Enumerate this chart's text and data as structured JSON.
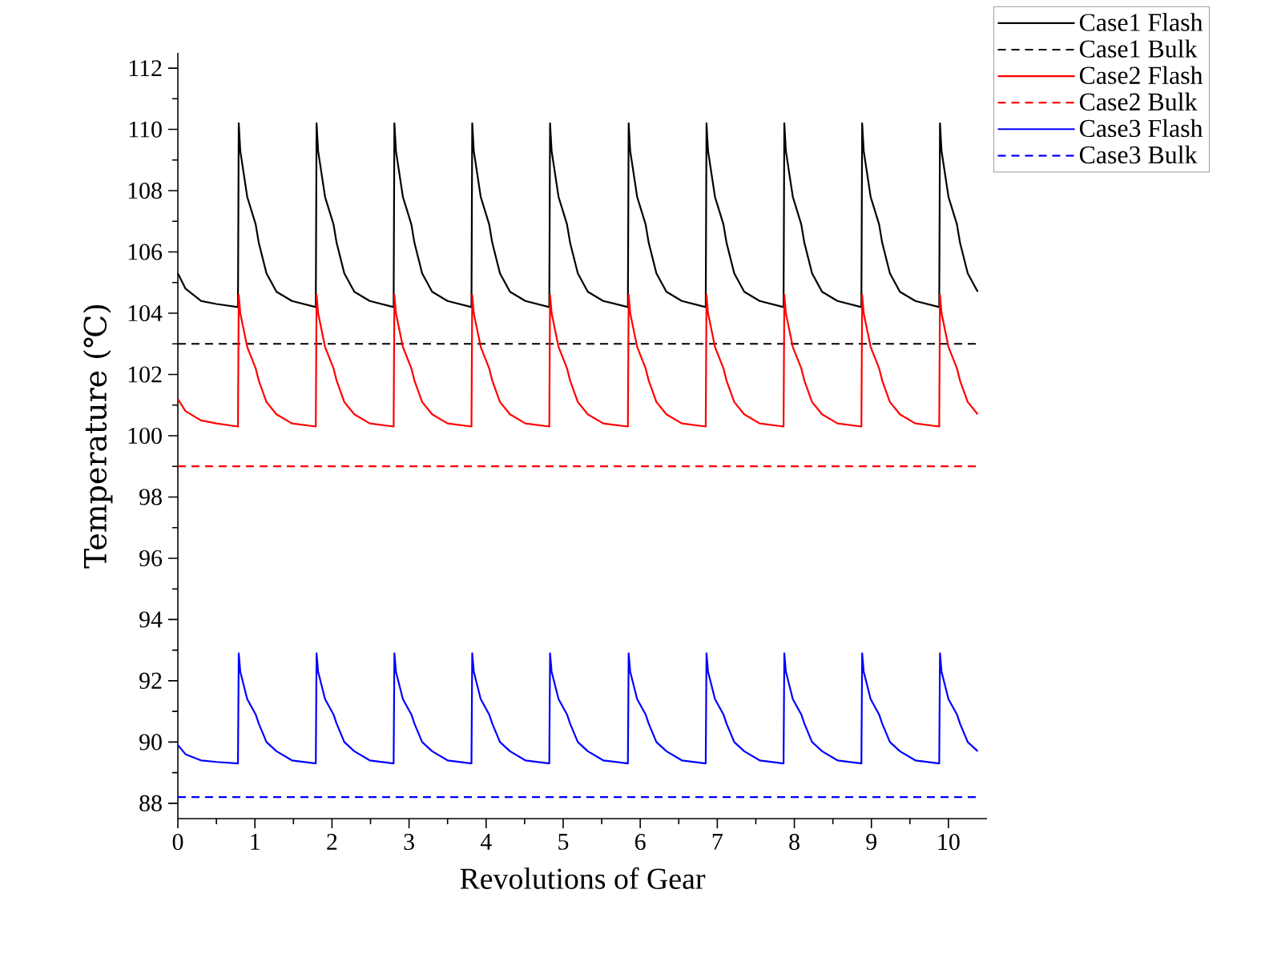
{
  "chart_data": {
    "type": "line",
    "xlabel": "Revolutions of Gear",
    "ylabel": "Temperature (℃)",
    "xlim": [
      0,
      10.5
    ],
    "ylim": [
      87.5,
      112.5
    ],
    "xticks": [
      0,
      1,
      2,
      3,
      4,
      5,
      6,
      7,
      8,
      9,
      10
    ],
    "yticks": [
      88,
      90,
      92,
      94,
      96,
      98,
      100,
      102,
      104,
      106,
      108,
      110,
      112
    ],
    "legend": "top right",
    "x": [
      0,
      0.1,
      0.3,
      0.5,
      0.78,
      0.79,
      0.81,
      0.9,
      1.01,
      1.05,
      1.15,
      1.28,
      1.48,
      1.79,
      1.8,
      1.82,
      1.91,
      2.02,
      2.06,
      2.16,
      2.29,
      2.49,
      2.8,
      2.81,
      2.83,
      2.92,
      3.03,
      3.07,
      3.17,
      3.3,
      3.5,
      3.81,
      3.82,
      3.84,
      3.93,
      4.04,
      4.08,
      4.18,
      4.31,
      4.51,
      4.82,
      4.83,
      4.85,
      4.94,
      5.05,
      5.09,
      5.19,
      5.32,
      5.52,
      5.84,
      5.85,
      5.87,
      5.96,
      6.07,
      6.11,
      6.21,
      6.34,
      6.54,
      6.85,
      6.86,
      6.88,
      6.97,
      7.08,
      7.12,
      7.22,
      7.35,
      7.55,
      7.86,
      7.87,
      7.89,
      7.98,
      8.09,
      8.13,
      8.23,
      8.36,
      8.56,
      8.87,
      8.88,
      8.9,
      8.99,
      9.1,
      9.14,
      9.24,
      9.37,
      9.57,
      9.88,
      9.89,
      9.91,
      10,
      10.11,
      10.15,
      10.25,
      10.38
    ],
    "series": [
      {
        "name": "Case1 Flash",
        "color": "#000000",
        "line_style": "solid",
        "values": [
          105.3,
          104.8,
          104.4,
          104.3,
          104.2,
          110.2,
          109.3,
          107.8,
          106.9,
          106.3,
          105.3,
          104.7,
          104.4,
          104.2,
          110.2,
          109.3,
          107.8,
          106.9,
          106.3,
          105.3,
          104.7,
          104.4,
          104.2,
          110.2,
          109.3,
          107.8,
          106.9,
          106.3,
          105.3,
          104.7,
          104.4,
          104.2,
          110.2,
          109.3,
          107.8,
          106.9,
          106.3,
          105.3,
          104.7,
          104.4,
          104.2,
          110.2,
          109.3,
          107.8,
          106.9,
          106.3,
          105.3,
          104.7,
          104.4,
          104.2,
          110.2,
          109.3,
          107.8,
          106.9,
          106.3,
          105.3,
          104.7,
          104.4,
          104.2,
          110.2,
          109.3,
          107.8,
          106.9,
          106.3,
          105.3,
          104.7,
          104.4,
          104.2,
          110.2,
          109.3,
          107.8,
          106.9,
          106.3,
          105.3,
          104.7,
          104.4,
          104.2,
          110.2,
          109.3,
          107.8,
          106.9,
          106.3,
          105.3,
          104.7,
          104.4,
          104.2,
          110.2,
          109.3,
          107.8,
          106.9,
          106.3,
          105.3,
          104.7
        ]
      },
      {
        "name": "Case1 Bulk",
        "color": "#000000",
        "line_style": "dashed",
        "values": [
          103,
          103,
          103,
          103,
          103,
          103,
          103,
          103,
          103,
          103,
          103,
          103,
          103,
          103,
          103,
          103,
          103,
          103,
          103,
          103,
          103,
          103,
          103,
          103,
          103,
          103,
          103,
          103,
          103,
          103,
          103,
          103,
          103,
          103,
          103,
          103,
          103,
          103,
          103,
          103,
          103,
          103,
          103,
          103,
          103,
          103,
          103,
          103,
          103,
          103,
          103,
          103,
          103,
          103,
          103,
          103,
          103,
          103,
          103,
          103,
          103,
          103,
          103,
          103,
          103,
          103,
          103,
          103,
          103,
          103,
          103,
          103,
          103,
          103,
          103,
          103,
          103,
          103,
          103,
          103,
          103,
          103,
          103,
          103,
          103,
          103,
          103,
          103,
          103,
          103,
          103,
          103,
          103
        ]
      },
      {
        "name": "Case2 Flash",
        "color": "#ff0000",
        "line_style": "solid",
        "values": [
          101.2,
          100.8,
          100.5,
          100.4,
          100.3,
          104.6,
          104.0,
          102.9,
          102.2,
          101.8,
          101.1,
          100.7,
          100.4,
          100.3,
          104.6,
          104.0,
          102.9,
          102.2,
          101.8,
          101.1,
          100.7,
          100.4,
          100.3,
          104.6,
          104.0,
          102.9,
          102.2,
          101.8,
          101.1,
          100.7,
          100.4,
          100.3,
          104.6,
          104.0,
          102.9,
          102.2,
          101.8,
          101.1,
          100.7,
          100.4,
          100.3,
          104.6,
          104.0,
          102.9,
          102.2,
          101.8,
          101.1,
          100.7,
          100.4,
          100.3,
          104.6,
          104.0,
          102.9,
          102.2,
          101.8,
          101.1,
          100.7,
          100.4,
          100.3,
          104.6,
          104.0,
          102.9,
          102.2,
          101.8,
          101.1,
          100.7,
          100.4,
          100.3,
          104.6,
          104.0,
          102.9,
          102.2,
          101.8,
          101.1,
          100.7,
          100.4,
          100.3,
          104.6,
          104.0,
          102.9,
          102.2,
          101.8,
          101.1,
          100.7,
          100.4,
          100.3,
          104.6,
          104.0,
          102.9,
          102.2,
          101.8,
          101.1,
          100.7
        ]
      },
      {
        "name": "Case2 Bulk",
        "color": "#ff0000",
        "line_style": "dashed",
        "values": [
          99,
          99,
          99,
          99,
          99,
          99,
          99,
          99,
          99,
          99,
          99,
          99,
          99,
          99,
          99,
          99,
          99,
          99,
          99,
          99,
          99,
          99,
          99,
          99,
          99,
          99,
          99,
          99,
          99,
          99,
          99,
          99,
          99,
          99,
          99,
          99,
          99,
          99,
          99,
          99,
          99,
          99,
          99,
          99,
          99,
          99,
          99,
          99,
          99,
          99,
          99,
          99,
          99,
          99,
          99,
          99,
          99,
          99,
          99,
          99,
          99,
          99,
          99,
          99,
          99,
          99,
          99,
          99,
          99,
          99,
          99,
          99,
          99,
          99,
          99,
          99,
          99,
          99,
          99,
          99,
          99,
          99,
          99,
          99,
          99,
          99,
          99,
          99,
          99,
          99,
          99,
          99,
          99
        ]
      },
      {
        "name": "Case3 Flash",
        "color": "#0000ff",
        "line_style": "solid",
        "values": [
          89.9,
          89.6,
          89.4,
          89.35,
          89.3,
          92.9,
          92.3,
          91.4,
          90.9,
          90.6,
          90.0,
          89.7,
          89.4,
          89.3,
          92.9,
          92.3,
          91.4,
          90.9,
          90.6,
          90.0,
          89.7,
          89.4,
          89.3,
          92.9,
          92.3,
          91.4,
          90.9,
          90.6,
          90.0,
          89.7,
          89.4,
          89.3,
          92.9,
          92.3,
          91.4,
          90.9,
          90.6,
          90.0,
          89.7,
          89.4,
          89.3,
          92.9,
          92.3,
          91.4,
          90.9,
          90.6,
          90.0,
          89.7,
          89.4,
          89.3,
          92.9,
          92.3,
          91.4,
          90.9,
          90.6,
          90.0,
          89.7,
          89.4,
          89.3,
          92.9,
          92.3,
          91.4,
          90.9,
          90.6,
          90.0,
          89.7,
          89.4,
          89.3,
          92.9,
          92.3,
          91.4,
          90.9,
          90.6,
          90.0,
          89.7,
          89.4,
          89.3,
          92.9,
          92.3,
          91.4,
          90.9,
          90.6,
          90.0,
          89.7,
          89.4,
          89.3,
          92.9,
          92.3,
          91.4,
          90.9,
          90.6,
          90.0,
          89.7
        ]
      },
      {
        "name": "Case3 Bulk",
        "color": "#0000ff",
        "line_style": "dashed",
        "values": [
          88.2,
          88.2,
          88.2,
          88.2,
          88.2,
          88.2,
          88.2,
          88.2,
          88.2,
          88.2,
          88.2,
          88.2,
          88.2,
          88.2,
          88.2,
          88.2,
          88.2,
          88.2,
          88.2,
          88.2,
          88.2,
          88.2,
          88.2,
          88.2,
          88.2,
          88.2,
          88.2,
          88.2,
          88.2,
          88.2,
          88.2,
          88.2,
          88.2,
          88.2,
          88.2,
          88.2,
          88.2,
          88.2,
          88.2,
          88.2,
          88.2,
          88.2,
          88.2,
          88.2,
          88.2,
          88.2,
          88.2,
          88.2,
          88.2,
          88.2,
          88.2,
          88.2,
          88.2,
          88.2,
          88.2,
          88.2,
          88.2,
          88.2,
          88.2,
          88.2,
          88.2,
          88.2,
          88.2,
          88.2,
          88.2,
          88.2,
          88.2,
          88.2,
          88.2,
          88.2,
          88.2,
          88.2,
          88.2,
          88.2,
          88.2,
          88.2,
          88.2,
          88.2,
          88.2,
          88.2,
          88.2,
          88.2,
          88.2,
          88.2,
          88.2,
          88.2,
          88.2,
          88.2,
          88.2,
          88.2,
          88.2,
          88.2,
          88.2
        ]
      }
    ]
  }
}
